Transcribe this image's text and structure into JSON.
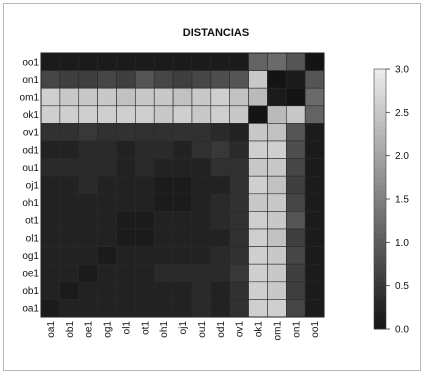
{
  "chart_data": {
    "type": "heatmap",
    "title": "DISTANCIAS",
    "x_labels": [
      "oa1",
      "ob1",
      "oe1",
      "og1",
      "ol1",
      "ot1",
      "oh1",
      "oj1",
      "ou1",
      "od1",
      "ov1",
      "ok1",
      "om1",
      "on1",
      "oo1"
    ],
    "y_labels": [
      "oo1",
      "on1",
      "om1",
      "ok1",
      "ov1",
      "od1",
      "ou1",
      "oj1",
      "oh1",
      "ot1",
      "ol1",
      "og1",
      "oe1",
      "ob1",
      "oa1"
    ],
    "values": [
      [
        0.1,
        0.1,
        0.1,
        0.1,
        0.1,
        0.1,
        0.1,
        0.1,
        0.1,
        0.1,
        0.1,
        1.1,
        1.2,
        0.9,
        0.0
      ],
      [
        0.7,
        0.6,
        0.6,
        0.7,
        0.6,
        0.9,
        0.7,
        0.6,
        0.7,
        0.8,
        0.9,
        2.5,
        0.0,
        0.1,
        0.9
      ],
      [
        2.6,
        2.5,
        2.5,
        2.5,
        2.4,
        2.5,
        2.5,
        2.4,
        2.5,
        2.6,
        2.4,
        2.3,
        0.1,
        0.0,
        1.2
      ],
      [
        2.6,
        2.6,
        2.6,
        2.6,
        2.6,
        2.6,
        2.5,
        2.6,
        2.5,
        2.6,
        2.5,
        0.0,
        2.3,
        2.5,
        1.1
      ],
      [
        0.4,
        0.4,
        0.5,
        0.4,
        0.4,
        0.4,
        0.4,
        0.4,
        0.4,
        0.3,
        0.2,
        2.5,
        2.4,
        0.9,
        0.1
      ],
      [
        0.2,
        0.2,
        0.3,
        0.3,
        0.2,
        0.3,
        0.3,
        0.2,
        0.4,
        0.5,
        0.3,
        2.6,
        2.6,
        0.8,
        0.1
      ],
      [
        0.3,
        0.3,
        0.3,
        0.3,
        0.2,
        0.3,
        0.2,
        0.2,
        0.2,
        0.4,
        0.4,
        2.5,
        2.5,
        0.7,
        0.1
      ],
      [
        0.2,
        0.2,
        0.3,
        0.2,
        0.2,
        0.2,
        0.1,
        0.1,
        0.2,
        0.2,
        0.4,
        2.6,
        2.4,
        0.6,
        0.1
      ],
      [
        0.2,
        0.2,
        0.2,
        0.2,
        0.2,
        0.2,
        0.1,
        0.1,
        0.2,
        0.3,
        0.4,
        2.5,
        2.5,
        0.7,
        0.1
      ],
      [
        0.2,
        0.2,
        0.2,
        0.2,
        0.1,
        0.1,
        0.2,
        0.2,
        0.2,
        0.3,
        0.4,
        2.6,
        2.5,
        0.9,
        0.1
      ],
      [
        0.2,
        0.2,
        0.2,
        0.2,
        0.1,
        0.1,
        0.2,
        0.2,
        0.2,
        0.2,
        0.4,
        2.6,
        2.4,
        0.6,
        0.1
      ],
      [
        0.2,
        0.2,
        0.2,
        0.1,
        0.2,
        0.2,
        0.2,
        0.2,
        0.2,
        0.3,
        0.4,
        2.6,
        2.5,
        0.7,
        0.1
      ],
      [
        0.2,
        0.2,
        0.1,
        0.2,
        0.2,
        0.2,
        0.3,
        0.3,
        0.3,
        0.3,
        0.5,
        2.6,
        2.5,
        0.6,
        0.1
      ],
      [
        0.2,
        0.1,
        0.2,
        0.2,
        0.2,
        0.2,
        0.2,
        0.2,
        0.3,
        0.2,
        0.4,
        2.6,
        2.5,
        0.6,
        0.1
      ],
      [
        0.1,
        0.2,
        0.2,
        0.2,
        0.2,
        0.2,
        0.2,
        0.2,
        0.3,
        0.2,
        0.4,
        2.6,
        2.6,
        0.7,
        0.1
      ]
    ],
    "scale": {
      "min": 0.0,
      "max": 3.0,
      "low_color": "#141414",
      "high_color": "#ececec"
    },
    "colorbar_ticks": [
      "0.0",
      "0.5",
      "1.0",
      "1.5",
      "2.0",
      "2.5",
      "3.0"
    ],
    "grid": true,
    "legend": "right"
  }
}
